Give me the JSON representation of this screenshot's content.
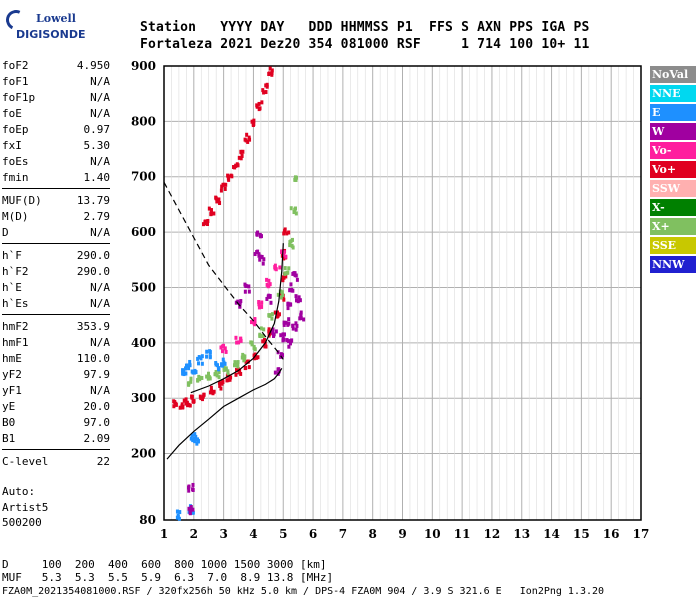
{
  "logo": {
    "line1": "Lowell",
    "line2": "DIGISONDE"
  },
  "header": {
    "line1": "Station   YYYY DAY   DDD HHMMSS P1  FFS S AXN PPS IGA PS",
    "line2": "Fortaleza 2021 Dez20 354 081000 RSF     1 714 100 10+ 11"
  },
  "params": [
    {
      "label": "foF2",
      "value": "4.950"
    },
    {
      "label": "foF1",
      "value": "N/A"
    },
    {
      "label": "foF1p",
      "value": "N/A"
    },
    {
      "label": "foE",
      "value": "N/A"
    },
    {
      "label": "foEp",
      "value": "0.97"
    },
    {
      "label": "fxI",
      "value": "5.30"
    },
    {
      "label": "foEs",
      "value": "N/A"
    },
    {
      "label": "fmin",
      "value": "1.40"
    },
    {
      "label": "MUF(D)",
      "value": "13.79"
    },
    {
      "label": "M(D)",
      "value": "2.79"
    },
    {
      "label": "D",
      "value": "N/A"
    },
    {
      "label": "h`F",
      "value": "290.0"
    },
    {
      "label": "h`F2",
      "value": "290.0"
    },
    {
      "label": "h`E",
      "value": "N/A"
    },
    {
      "label": "h`Es",
      "value": "N/A"
    },
    {
      "label": "hmF2",
      "value": "353.9"
    },
    {
      "label": "hmF1",
      "value": "N/A"
    },
    {
      "label": "hmE",
      "value": "110.0"
    },
    {
      "label": "yF2",
      "value": "97.9"
    },
    {
      "label": "yF1",
      "value": "N/A"
    },
    {
      "label": "yE",
      "value": "20.0"
    },
    {
      "label": "B0",
      "value": "97.0"
    },
    {
      "label": "B1",
      "value": "2.09"
    },
    {
      "label": "C-level",
      "value": "22"
    }
  ],
  "auto": {
    "line1": "Auto:",
    "line2": "Artist5",
    "line3": "500200"
  },
  "footer": {
    "d_row": "D     100  200  400  600  800 1000 1500 3000 [km]",
    "muf_row": "MUF   5.3  5.3  5.5  5.9  6.3  7.0  8.9 13.8 [MHz]",
    "info": "FZA0M_2021354081000.RSF / 320fx256h 50 kHz 5.0 km / DPS-4 FZA0M 904 / 3.9 S 321.6 E   Ion2Png 1.3.20"
  },
  "legend": [
    {
      "label": "NoVal",
      "color": "#8c8c8c"
    },
    {
      "label": "NNE",
      "color": "#00d8f0"
    },
    {
      "label": "E",
      "color": "#1e90ff"
    },
    {
      "label": "W",
      "color": "#a000a0"
    },
    {
      "label": "Vo-",
      "color": "#ff1e9e"
    },
    {
      "label": "Vo+",
      "color": "#e00020"
    },
    {
      "label": "SSW",
      "color": "#ffb0b0"
    },
    {
      "label": "X-",
      "color": "#008000"
    },
    {
      "label": "X+",
      "color": "#80c060"
    },
    {
      "label": "SSE",
      "color": "#c8c800"
    },
    {
      "label": "NNW",
      "color": "#2020d0"
    }
  ],
  "chart_data": {
    "type": "scatter",
    "xlim": [
      1,
      17
    ],
    "ylim": [
      80,
      900
    ],
    "x_ticks": [
      1,
      2,
      3,
      4,
      5,
      6,
      7,
      8,
      9,
      10,
      11,
      12,
      13,
      14,
      15,
      16,
      17
    ],
    "y_ticks": [
      80,
      200,
      300,
      400,
      500,
      600,
      700,
      800,
      900
    ],
    "grid": true,
    "series": [
      {
        "name": "Vo+",
        "color": "#e00020",
        "points": [
          [
            1.4,
            290
          ],
          [
            1.6,
            290
          ],
          [
            1.8,
            292
          ],
          [
            2.0,
            298
          ],
          [
            2.3,
            305
          ],
          [
            2.6,
            315
          ],
          [
            2.9,
            325
          ],
          [
            3.2,
            335
          ],
          [
            3.5,
            348
          ],
          [
            3.8,
            362
          ],
          [
            4.1,
            380
          ],
          [
            4.4,
            400
          ],
          [
            4.6,
            420
          ],
          [
            4.8,
            450
          ],
          [
            4.95,
            480
          ],
          [
            5.0,
            520
          ],
          [
            5.05,
            560
          ],
          [
            5.1,
            600
          ]
        ]
      },
      {
        "name": "Vo+",
        "color": "#e00020",
        "points": [
          [
            2.4,
            620
          ],
          [
            2.6,
            640
          ],
          [
            2.8,
            660
          ],
          [
            3.0,
            680
          ],
          [
            3.2,
            700
          ],
          [
            3.4,
            720
          ],
          [
            3.6,
            740
          ],
          [
            3.8,
            770
          ],
          [
            4.0,
            800
          ],
          [
            4.2,
            830
          ],
          [
            4.4,
            860
          ],
          [
            4.6,
            890
          ]
        ]
      },
      {
        "name": "X+",
        "color": "#80c060",
        "points": [
          [
            1.9,
            330
          ],
          [
            2.2,
            335
          ],
          [
            2.5,
            340
          ],
          [
            2.8,
            345
          ],
          [
            3.1,
            352
          ],
          [
            3.4,
            362
          ],
          [
            3.7,
            375
          ],
          [
            4.0,
            395
          ],
          [
            4.3,
            420
          ],
          [
            4.6,
            450
          ],
          [
            4.9,
            490
          ],
          [
            5.1,
            530
          ],
          [
            5.25,
            580
          ],
          [
            5.35,
            640
          ],
          [
            5.45,
            700
          ]
        ]
      },
      {
        "name": "E",
        "color": "#1e90ff",
        "points": [
          [
            1.7,
            350
          ],
          [
            1.8,
            360
          ],
          [
            2.0,
            345
          ],
          [
            2.2,
            370
          ],
          [
            2.5,
            380
          ],
          [
            2.8,
            360
          ],
          [
            3.0,
            365
          ],
          [
            1.5,
            90
          ],
          [
            1.9,
            100
          ],
          [
            2.1,
            220
          ],
          [
            2.0,
            230
          ]
        ]
      },
      {
        "name": "W",
        "color": "#a000a0",
        "points": [
          [
            4.8,
            350
          ],
          [
            4.9,
            380
          ],
          [
            5.0,
            410
          ],
          [
            5.1,
            440
          ],
          [
            5.2,
            470
          ],
          [
            5.3,
            500
          ],
          [
            5.4,
            520
          ],
          [
            5.5,
            480
          ],
          [
            5.6,
            450
          ],
          [
            5.4,
            430
          ],
          [
            5.2,
            400
          ],
          [
            4.7,
            420
          ],
          [
            4.5,
            480
          ],
          [
            4.3,
            550
          ],
          [
            4.2,
            600
          ],
          [
            4.1,
            560
          ],
          [
            3.8,
            500
          ],
          [
            3.5,
            470
          ],
          [
            1.9,
            100
          ],
          [
            1.9,
            140
          ]
        ]
      },
      {
        "name": "Vo-",
        "color": "#ff1e9e",
        "points": [
          [
            3.0,
            390
          ],
          [
            3.5,
            405
          ],
          [
            4.0,
            440
          ],
          [
            4.2,
            470
          ],
          [
            4.5,
            510
          ],
          [
            4.8,
            540
          ],
          [
            5.0,
            560
          ]
        ]
      }
    ],
    "curves": [
      {
        "name": "profile",
        "style": "solid",
        "points": [
          [
            1.1,
            190
          ],
          [
            1.5,
            215
          ],
          [
            2.0,
            240
          ],
          [
            2.5,
            262
          ],
          [
            3.0,
            285
          ],
          [
            3.5,
            300
          ],
          [
            4.0,
            315
          ],
          [
            4.4,
            325
          ],
          [
            4.7,
            335
          ],
          [
            4.85,
            345
          ],
          [
            4.95,
            354
          ]
        ]
      },
      {
        "name": "trace",
        "style": "solid",
        "points": [
          [
            1.9,
            310
          ],
          [
            2.5,
            322
          ],
          [
            3.0,
            335
          ],
          [
            3.5,
            350
          ],
          [
            4.0,
            372
          ],
          [
            4.4,
            400
          ],
          [
            4.7,
            435
          ],
          [
            4.85,
            475
          ],
          [
            4.95,
            530
          ],
          [
            5.0,
            580
          ]
        ]
      },
      {
        "name": "muf",
        "style": "dashed",
        "points": [
          [
            1.0,
            690
          ],
          [
            1.5,
            640
          ],
          [
            2.0,
            590
          ],
          [
            2.5,
            540
          ],
          [
            3.0,
            505
          ],
          [
            3.5,
            470
          ],
          [
            4.0,
            440
          ],
          [
            4.5,
            405
          ],
          [
            4.8,
            385
          ],
          [
            5.0,
            370
          ]
        ]
      }
    ]
  }
}
